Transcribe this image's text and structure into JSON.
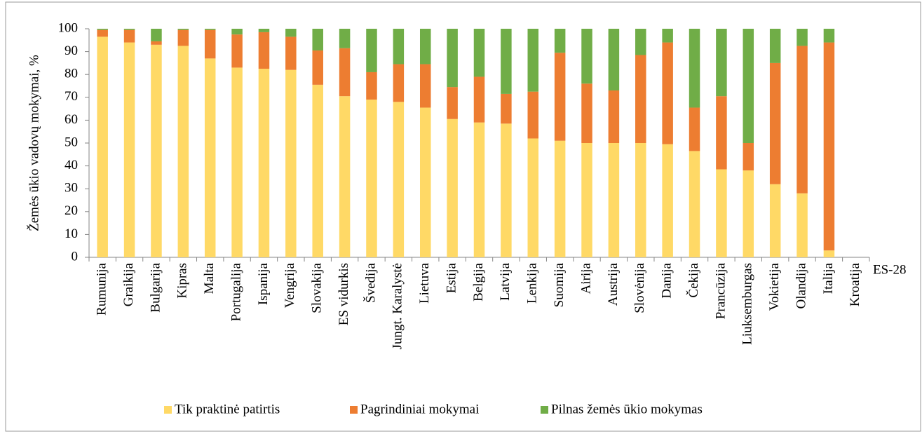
{
  "chart_data": {
    "type": "stacked_bar",
    "y_label": "Žemės ūkio vadovų mokymai, %",
    "x_label": "ES-28",
    "categories": [
      "Rumunija",
      "Graikija",
      "Bulgarija",
      "Kipras",
      "Malta",
      "Portugalija",
      "Ispanija",
      "Vengrija",
      "Slovakija",
      "ES vidurkis",
      "Švedija",
      "Jungt. Karalystė",
      "Lietuva",
      "Estija",
      "Belgija",
      "Latvija",
      "Lenkija",
      "Suomija",
      "Airija",
      "Austrija",
      "Slovėnija",
      "Danija",
      "Čekija",
      "Prancūzija",
      "Liuksemburgas",
      "Vokietija",
      "Olandija",
      "Italija",
      "Kroatija"
    ],
    "series": [
      {
        "name": "Tik praktinė patirtis",
        "color": "#ffd966",
        "values": [
          96.5,
          94,
          93,
          92.5,
          87,
          83,
          82.5,
          82,
          75.5,
          70.5,
          69,
          68,
          65.5,
          60.5,
          59,
          58.5,
          52,
          51,
          50,
          50,
          50,
          49.5,
          46.5,
          38.5,
          38,
          32,
          28,
          3,
          null
        ]
      },
      {
        "name": "Pagrindiniai mokymai",
        "color": "#ed7d31",
        "values": [
          3,
          5.5,
          1.5,
          7,
          12.5,
          14.5,
          16,
          14.5,
          15,
          21,
          12,
          16.5,
          19,
          14,
          20,
          13,
          20.5,
          38.5,
          26,
          23,
          38.5,
          44.5,
          19,
          32,
          12,
          53,
          64.5,
          91,
          null
        ]
      },
      {
        "name": "Pilnas žemės ūkio mokymas",
        "color": "#70ad47",
        "values": [
          0.5,
          0.5,
          5.5,
          0.5,
          0.5,
          2.5,
          1.5,
          3.5,
          9.5,
          8.5,
          19,
          15.5,
          15.5,
          25.5,
          21,
          28.5,
          27.5,
          10.5,
          24,
          27,
          11.5,
          6,
          34.5,
          29.5,
          50,
          15,
          7.5,
          6,
          null
        ]
      }
    ],
    "ylim": [
      0,
      100
    ],
    "yticks": [
      0,
      10,
      20,
      30,
      40,
      50,
      60,
      70,
      80,
      90,
      100
    ],
    "legend": "bottom"
  }
}
